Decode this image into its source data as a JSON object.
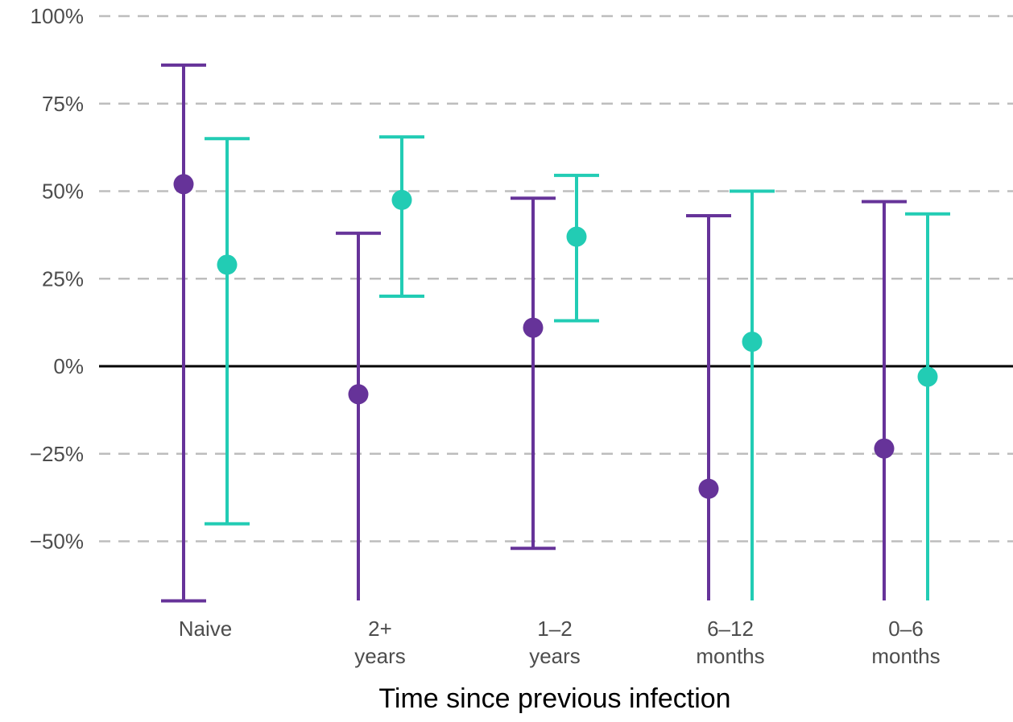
{
  "chart_data": {
    "type": "scatter",
    "subtype": "point-errorbar",
    "title": "",
    "xlabel": "Time since previous infection",
    "ylabel": "",
    "ylim": [
      -67,
      100
    ],
    "clip_lower": true,
    "grid": {
      "horizontal": true,
      "style": "dashed",
      "color": "#bdbdbd"
    },
    "zero_line": true,
    "y_ticks": [
      {
        "value": 100,
        "label": "100%"
      },
      {
        "value": 75,
        "label": "75%"
      },
      {
        "value": 50,
        "label": "50%"
      },
      {
        "value": 25,
        "label": "25%"
      },
      {
        "value": 0,
        "label": "0%"
      },
      {
        "value": -25,
        "label": "−25%"
      },
      {
        "value": -50,
        "label": "−50%"
      }
    ],
    "categories": [
      {
        "lines": [
          "Naive"
        ]
      },
      {
        "lines": [
          "2+",
          "years"
        ]
      },
      {
        "lines": [
          "1–2",
          "years"
        ]
      },
      {
        "lines": [
          "6–12",
          "months"
        ]
      },
      {
        "lines": [
          "0–6",
          "months"
        ]
      }
    ],
    "series": [
      {
        "color": "#663399",
        "values": [
          52,
          -8,
          11,
          -35,
          -23.5
        ],
        "lower": [
          -67,
          null,
          -52,
          null,
          null
        ],
        "upper": [
          86,
          38,
          48,
          43,
          47
        ]
      },
      {
        "color": "#22ccb4",
        "values": [
          29,
          47.5,
          37,
          7,
          -3
        ],
        "lower": [
          -45,
          20,
          13,
          null,
          null
        ],
        "upper": [
          65,
          65.5,
          54.5,
          50,
          43.5
        ]
      }
    ]
  }
}
